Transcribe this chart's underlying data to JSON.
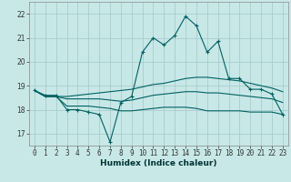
{
  "xlabel": "Humidex (Indice chaleur)",
  "background_color": "#c8e8e8",
  "grid_color": "#aacccc",
  "line_color": "#006060",
  "x": [
    0,
    1,
    2,
    3,
    4,
    5,
    6,
    7,
    8,
    9,
    10,
    11,
    12,
    13,
    14,
    15,
    16,
    17,
    18,
    19,
    20,
    21,
    22,
    23
  ],
  "y_main": [
    18.8,
    18.6,
    18.6,
    18.0,
    18.0,
    17.9,
    17.8,
    16.65,
    18.3,
    18.55,
    20.4,
    21.0,
    20.7,
    21.1,
    21.9,
    21.5,
    20.4,
    20.85,
    19.3,
    19.3,
    18.85,
    18.85,
    18.65,
    17.8
  ],
  "y_upper": [
    18.8,
    18.55,
    18.55,
    18.55,
    18.6,
    18.65,
    18.7,
    18.75,
    18.8,
    18.85,
    18.95,
    19.05,
    19.1,
    19.2,
    19.3,
    19.35,
    19.35,
    19.3,
    19.25,
    19.2,
    19.1,
    19.0,
    18.9,
    18.75
  ],
  "y_mid": [
    18.8,
    18.55,
    18.55,
    18.45,
    18.45,
    18.45,
    18.45,
    18.4,
    18.35,
    18.4,
    18.5,
    18.6,
    18.65,
    18.7,
    18.75,
    18.75,
    18.7,
    18.7,
    18.65,
    18.6,
    18.55,
    18.5,
    18.45,
    18.3
  ],
  "y_lower": [
    18.8,
    18.55,
    18.55,
    18.15,
    18.15,
    18.15,
    18.1,
    18.05,
    17.95,
    17.95,
    18.0,
    18.05,
    18.1,
    18.1,
    18.1,
    18.05,
    17.95,
    17.95,
    17.95,
    17.95,
    17.9,
    17.9,
    17.9,
    17.8
  ],
  "ylim": [
    16.5,
    22.5
  ],
  "yticks": [
    17,
    18,
    19,
    20,
    21,
    22
  ],
  "xticks": [
    0,
    1,
    2,
    3,
    4,
    5,
    6,
    7,
    8,
    9,
    10,
    11,
    12,
    13,
    14,
    15,
    16,
    17,
    18,
    19,
    20,
    21,
    22,
    23
  ],
  "tick_fontsize": 5.5,
  "label_fontsize": 6.5
}
